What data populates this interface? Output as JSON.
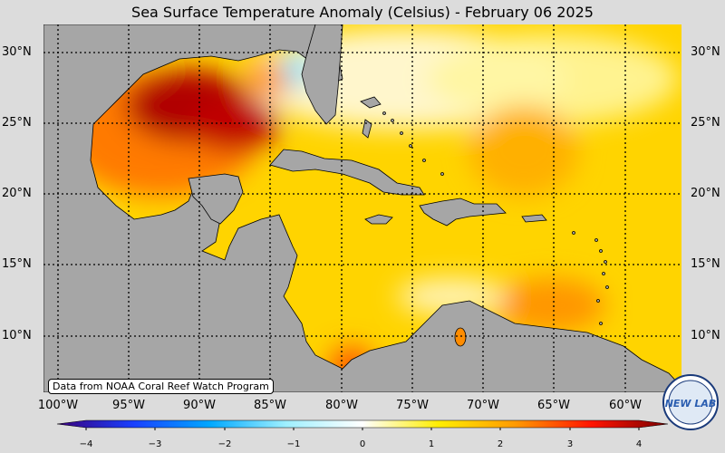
{
  "title": "Sea Surface Temperature Anomaly (Celsius) - February 06 2025",
  "credit": "Data from NOAA Coral Reef Watch Program",
  "lat_labels": [
    "30°N",
    "25°N",
    "20°N",
    "15°N",
    "10°N"
  ],
  "lon_labels": [
    "100°W",
    "95°W",
    "90°W",
    "85°W",
    "80°W",
    "75°W",
    "70°W",
    "65°W",
    "60°W"
  ],
  "colorbar": {
    "ticks": [
      "−4",
      "−3",
      "−2",
      "−1",
      "0",
      "1",
      "2",
      "3",
      "4"
    ],
    "stops": [
      "#3a007a",
      "#1a40ff",
      "#00a8ff",
      "#9ff0ff",
      "#ffffff",
      "#ffee00",
      "#ff9a00",
      "#ff1400",
      "#7a0000"
    ]
  },
  "logo": {
    "text": "NEW LAB"
  }
}
